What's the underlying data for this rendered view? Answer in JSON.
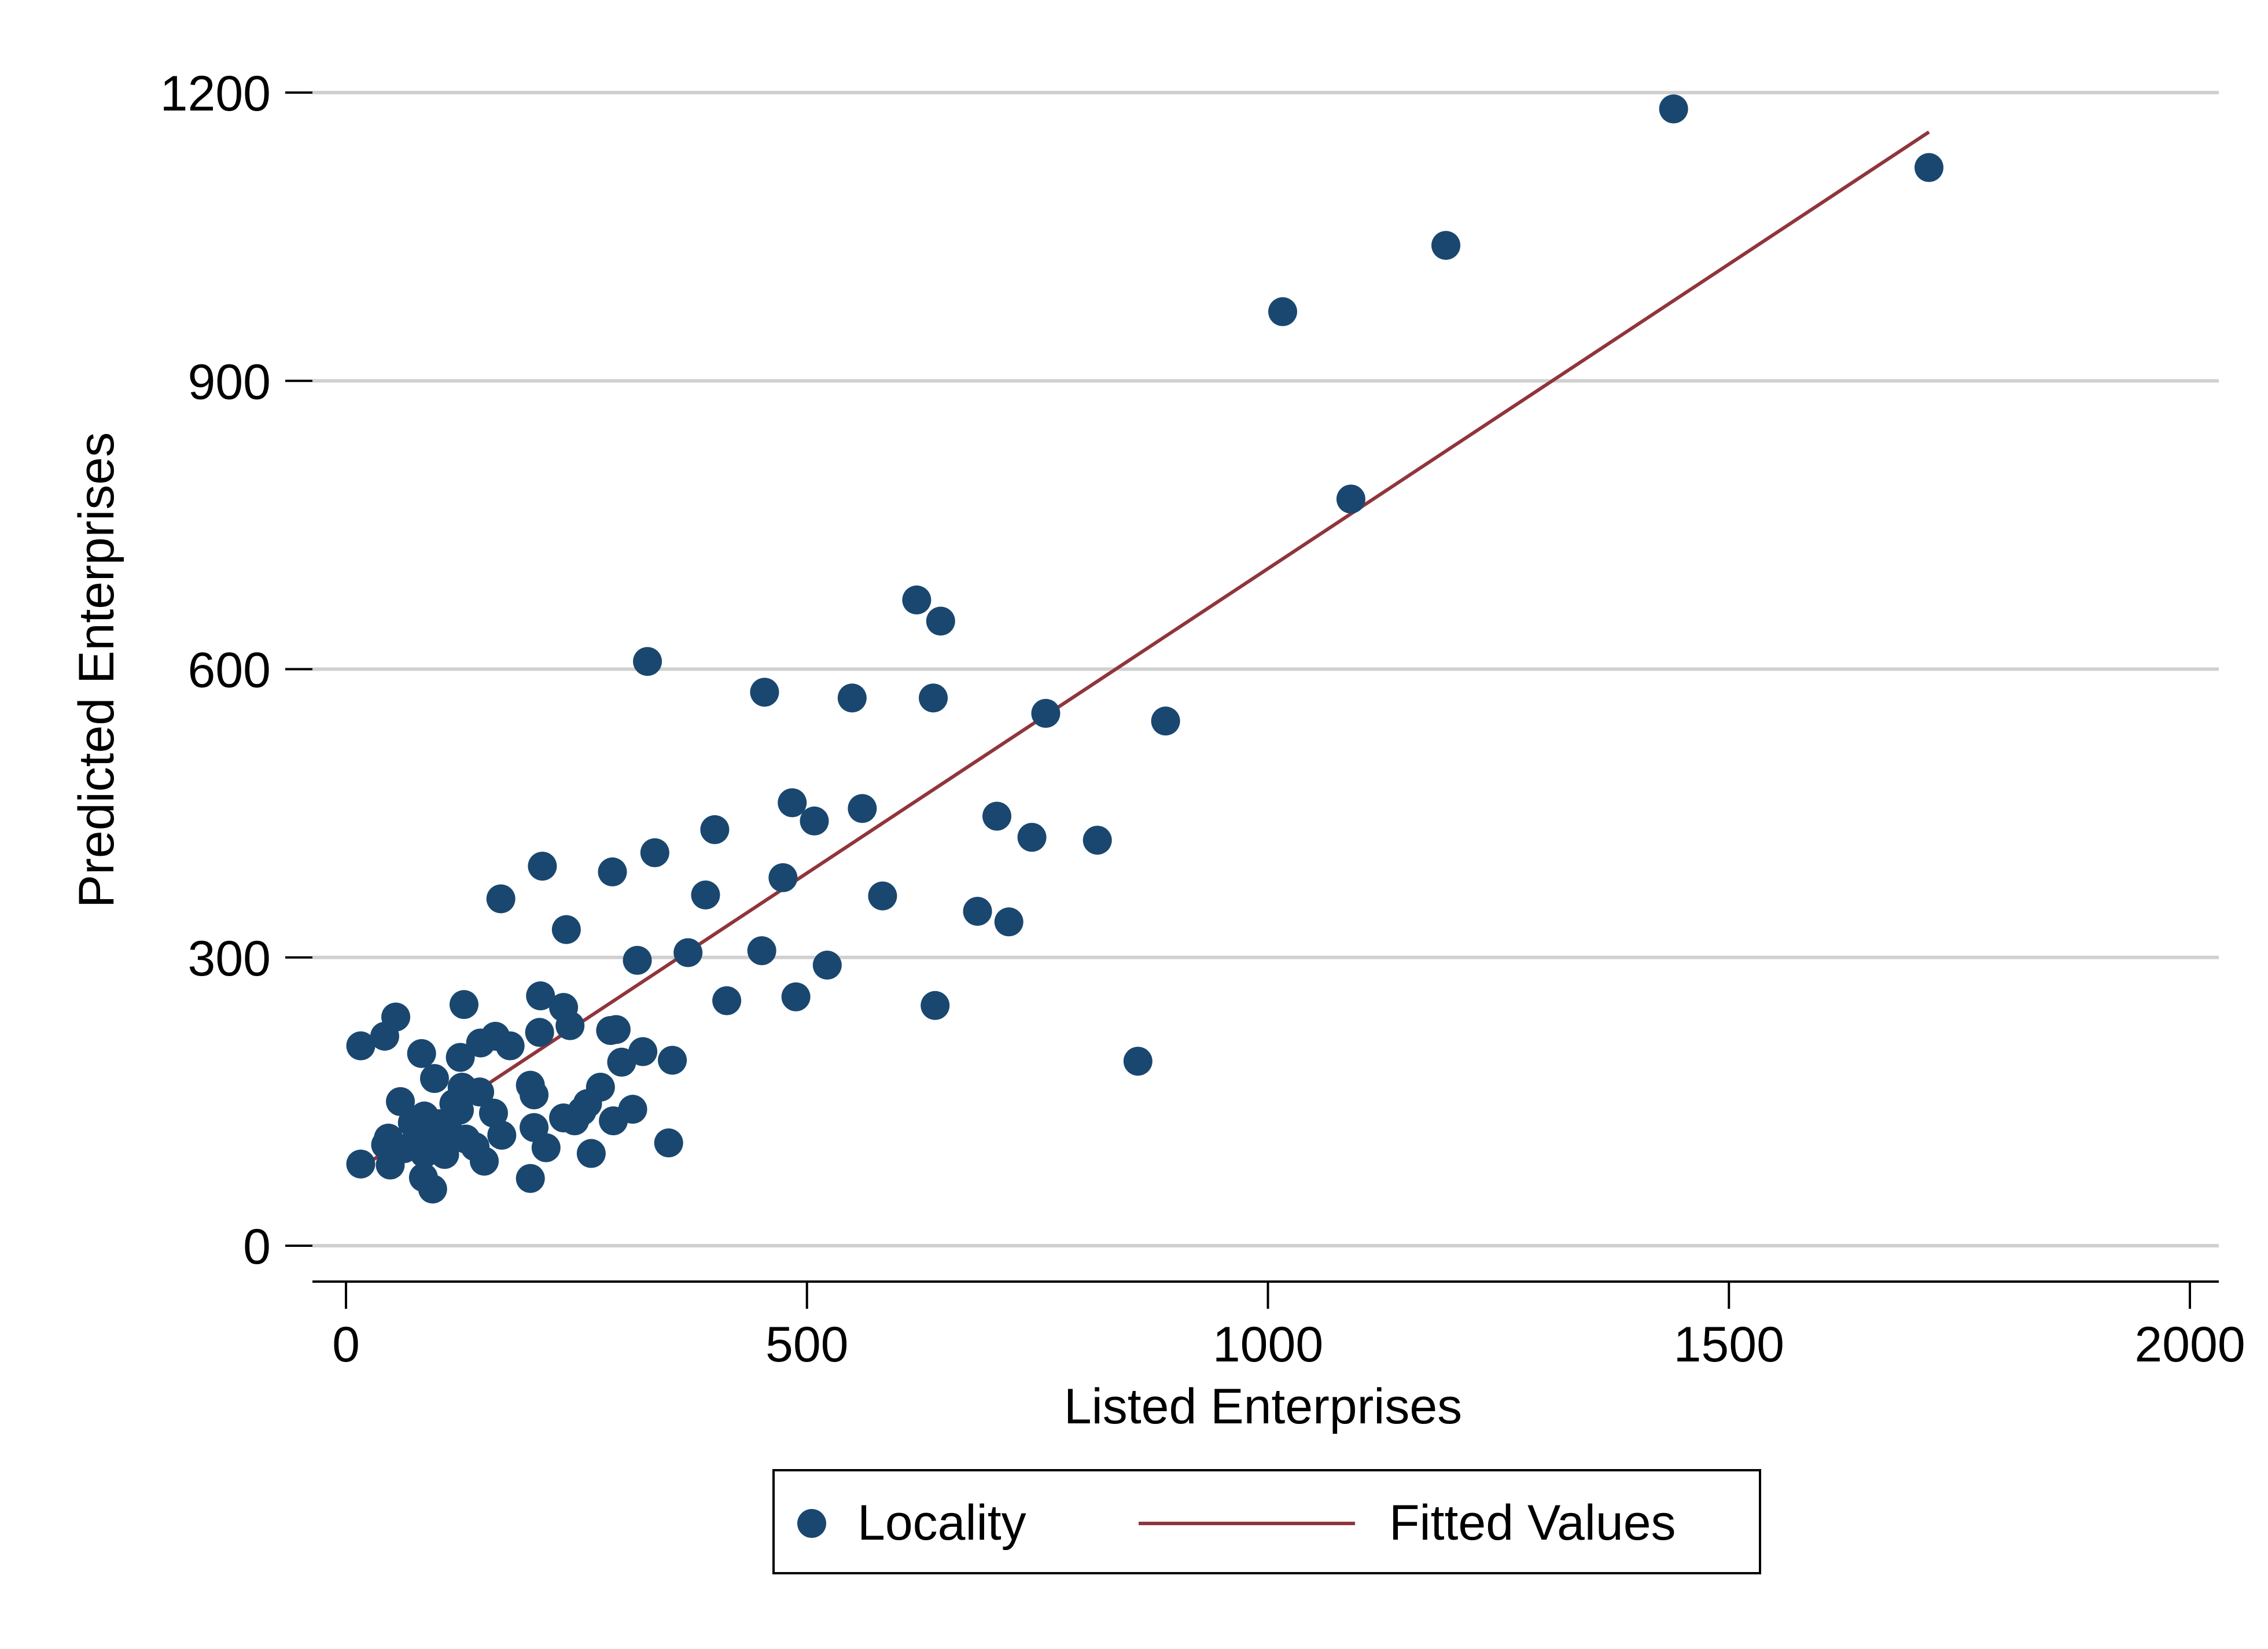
{
  "chart_data": {
    "type": "scatter",
    "title": "",
    "xlabel": "Listed Enterprises",
    "ylabel": "Predicted Enterprises",
    "xlim": [
      0,
      2000
    ],
    "ylim": [
      0,
      1200
    ],
    "x_ticks": [
      0,
      500,
      1000,
      1500,
      2000
    ],
    "y_ticks": [
      0,
      300,
      600,
      900,
      1200
    ],
    "grid": "horizontal",
    "legend": {
      "placement": "bottom-center",
      "framed": true
    },
    "colors": {
      "points": "#1a476f",
      "fit": "#90353b",
      "grid": "#d0d0d0",
      "axis": "#000000"
    },
    "series": [
      {
        "name": "Locality",
        "type": "scatter",
        "points": [
          [
            1440,
            1183
          ],
          [
            1717,
            1122
          ],
          [
            1193,
            1041
          ],
          [
            1016,
            972
          ],
          [
            1090,
            777
          ],
          [
            619,
            672
          ],
          [
            645,
            650
          ],
          [
            327,
            608
          ],
          [
            454,
            576
          ],
          [
            549,
            570
          ],
          [
            637,
            570
          ],
          [
            759,
            554
          ],
          [
            889,
            546
          ],
          [
            484,
            461
          ],
          [
            508,
            442
          ],
          [
            560,
            455
          ],
          [
            400,
            433
          ],
          [
            706,
            447
          ],
          [
            744,
            425
          ],
          [
            815,
            422
          ],
          [
            335,
            409
          ],
          [
            289,
            389
          ],
          [
            213,
            395
          ],
          [
            474,
            383
          ],
          [
            390,
            365
          ],
          [
            168,
            361
          ],
          [
            582,
            364
          ],
          [
            685,
            348
          ],
          [
            719,
            337
          ],
          [
            239,
            329
          ],
          [
            371,
            305
          ],
          [
            316,
            297
          ],
          [
            451,
            307
          ],
          [
            522,
            292
          ],
          [
            488,
            259
          ],
          [
            413,
            255
          ],
          [
            639,
            250
          ],
          [
            211,
            260
          ],
          [
            128,
            251
          ],
          [
            236,
            248
          ],
          [
            54,
            238
          ],
          [
            42,
            218
          ],
          [
            16,
            208
          ],
          [
            82,
            200
          ],
          [
            124,
            196
          ],
          [
            146,
            211
          ],
          [
            162,
            218
          ],
          [
            178,
            208
          ],
          [
            210,
            222
          ],
          [
            243,
            229
          ],
          [
            287,
            224
          ],
          [
            293,
            225
          ],
          [
            322,
            202
          ],
          [
            354,
            193
          ],
          [
            859,
            192
          ],
          [
            96,
            174
          ],
          [
            126,
            165
          ],
          [
            145,
            160
          ],
          [
            200,
            167
          ],
          [
            204,
            157
          ],
          [
            299,
            191
          ],
          [
            276,
            165
          ],
          [
            262,
            148
          ],
          [
            59,
            150
          ],
          [
            85,
            135
          ],
          [
            101,
            127
          ],
          [
            123,
            141
          ],
          [
            160,
            138
          ],
          [
            248,
            130
          ],
          [
            290,
            130
          ],
          [
            311,
            142
          ],
          [
            112,
            118
          ],
          [
            130,
            111
          ],
          [
            169,
            115
          ],
          [
            204,
            123
          ],
          [
            46,
            112
          ],
          [
            43,
            105
          ],
          [
            63,
            101
          ],
          [
            85,
            96
          ],
          [
            107,
            95
          ],
          [
            140,
            103
          ],
          [
            217,
            102
          ],
          [
            266,
            96
          ],
          [
            150,
            88
          ],
          [
            16,
            85
          ],
          [
            48,
            84
          ],
          [
            84,
            71
          ],
          [
            94,
            59
          ],
          [
            200,
            70
          ],
          [
            350,
            107
          ],
          [
            72,
            128
          ],
          [
            117,
            148
          ],
          [
            236,
            133
          ],
          [
            256,
            140
          ],
          [
            76,
            110
          ],
          [
            96,
            105
          ]
        ]
      },
      {
        "name": "Fitted Values",
        "type": "line",
        "points": [
          [
            16,
            81
          ],
          [
            1717,
            1159
          ]
        ]
      }
    ]
  }
}
